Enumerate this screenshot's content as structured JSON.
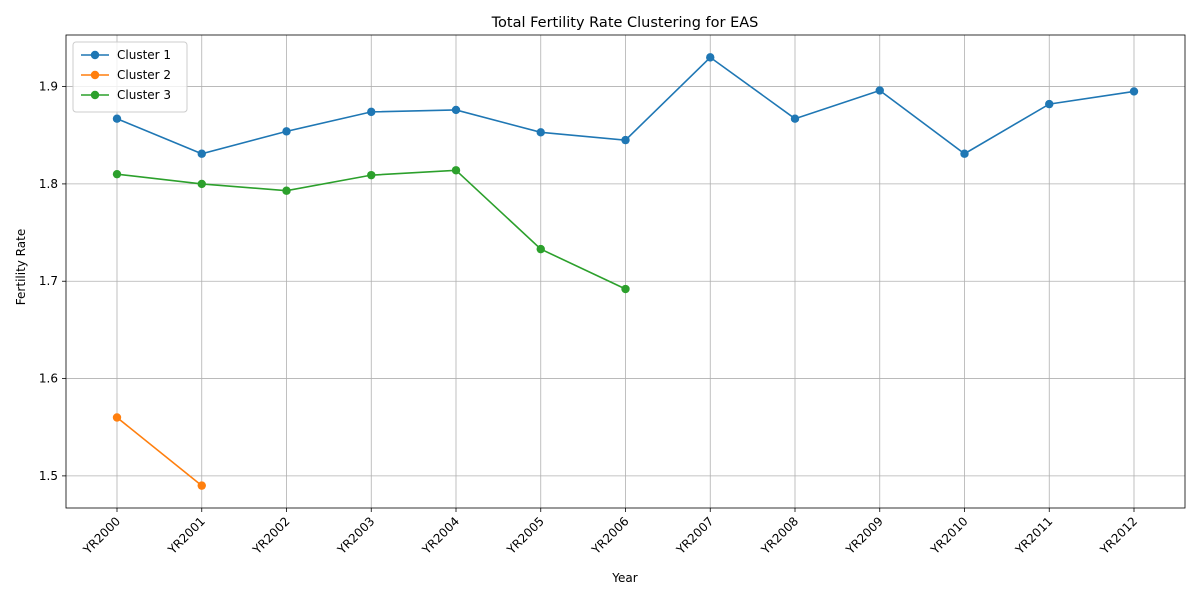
{
  "chart_data": {
    "type": "line",
    "title": "Total Fertility Rate Clustering for EAS",
    "xlabel": "Year",
    "ylabel": "Fertility Rate",
    "categories": [
      "YR2000",
      "YR2001",
      "YR2002",
      "YR2003",
      "YR2004",
      "YR2005",
      "YR2006",
      "YR2007",
      "YR2008",
      "YR2009",
      "YR2010",
      "YR2011",
      "YR2012"
    ],
    "ylim": [
      1.467,
      1.953
    ],
    "yticks": [
      "1.5",
      "1.6",
      "1.7",
      "1.8",
      "1.9"
    ],
    "grid": true,
    "legend_position": "top-left",
    "series": [
      {
        "name": "Cluster 1",
        "color": "#1f77b4",
        "values": [
          1.867,
          1.831,
          1.854,
          1.874,
          1.876,
          1.853,
          1.845,
          1.93,
          1.867,
          1.896,
          1.831,
          1.882,
          1.895
        ]
      },
      {
        "name": "Cluster 2",
        "color": "#ff7f0e",
        "values": [
          1.56,
          1.49,
          null,
          null,
          null,
          null,
          null,
          null,
          null,
          null,
          null,
          null,
          null
        ]
      },
      {
        "name": "Cluster 3",
        "color": "#2ca02c",
        "values": [
          1.81,
          1.8,
          1.793,
          1.809,
          1.814,
          1.733,
          1.692,
          null,
          null,
          null,
          null,
          null,
          null
        ]
      }
    ]
  }
}
